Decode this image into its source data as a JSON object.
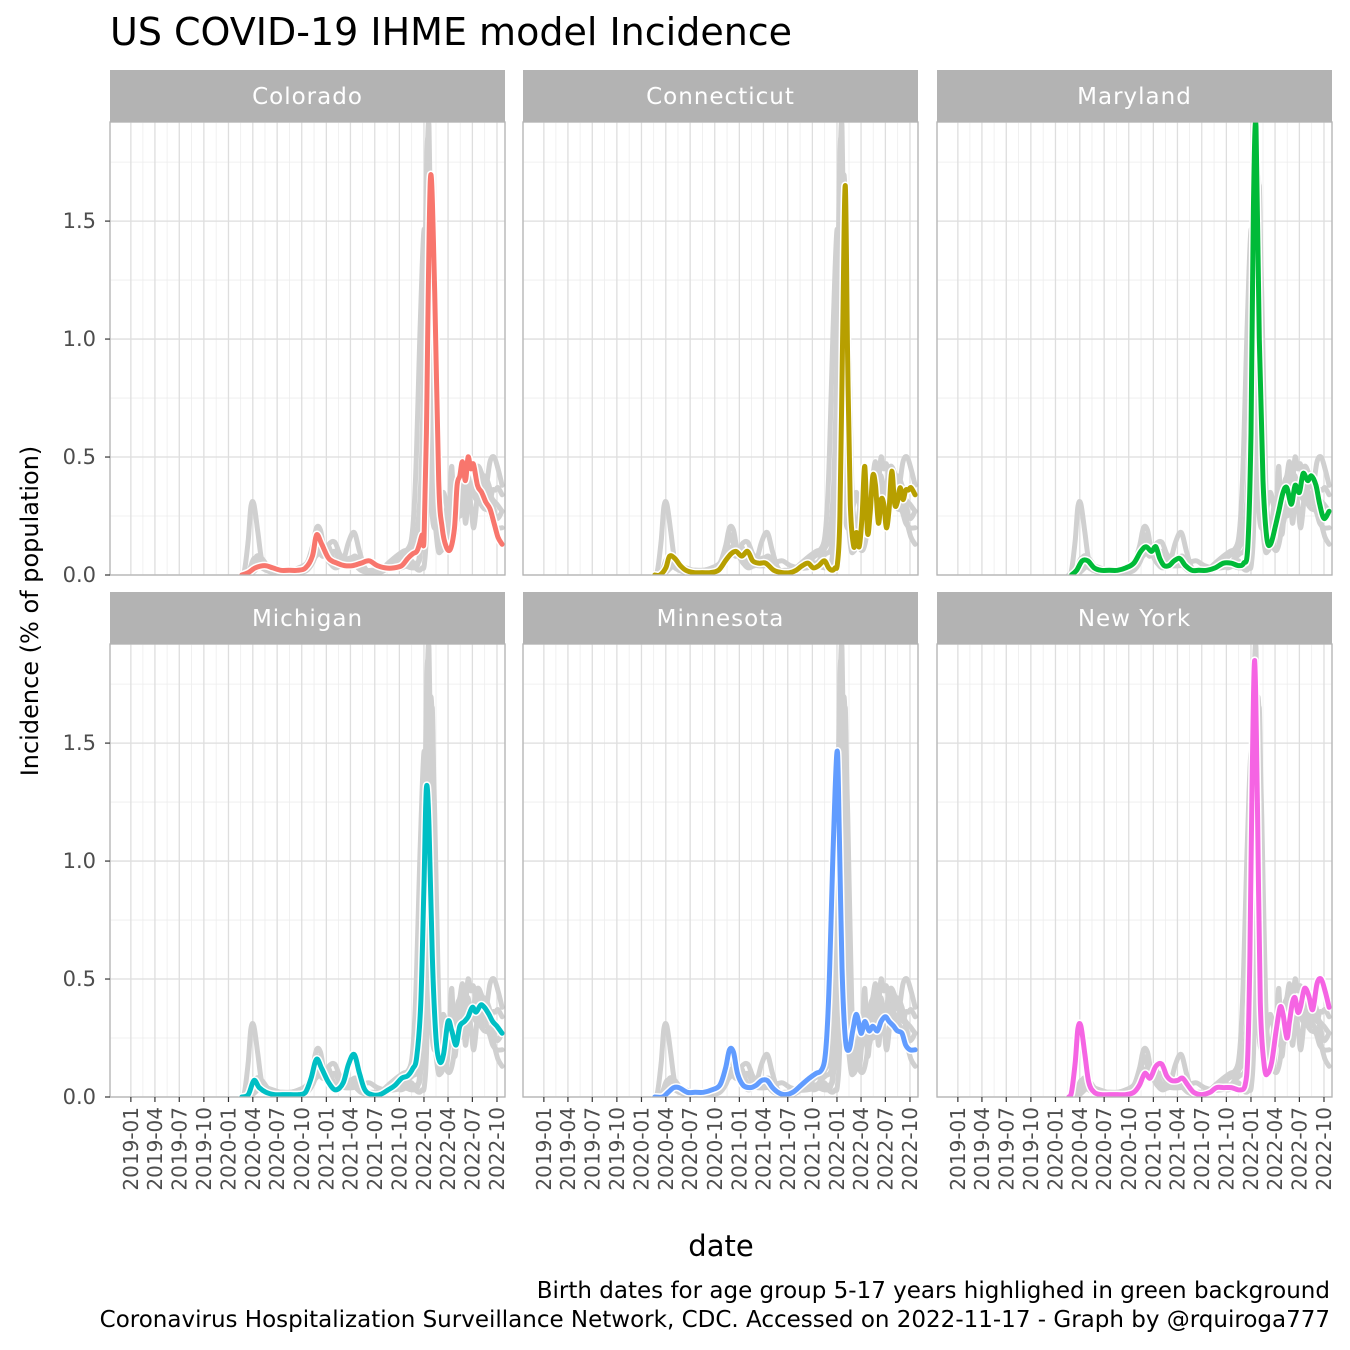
{
  "chart_data": {
    "type": "line",
    "title": "US COVID-19 IHME model Incidence",
    "xlabel": "date",
    "ylabel": "Incidence (% of population)",
    "caption_lines": [
      "Birth dates for age group 5-17 years highlighed in green background",
      "Coronavirus Hospitalization Surveillance Network, CDC. Accessed on 2022-11-17 - Graph by @rquiroga777"
    ],
    "x_tick_labels": [
      "2019-01",
      "2019-04",
      "2019-07",
      "2019-10",
      "2020-01",
      "2020-04",
      "2020-07",
      "2020-10",
      "2021-01",
      "2021-04",
      "2021-07",
      "2021-10",
      "2022-01",
      "2022-04",
      "2022-07",
      "2022-10"
    ],
    "x_range": [
      "2018-10-15",
      "2022-10-31"
    ],
    "y_ticks": [
      0.0,
      0.5,
      1.0,
      1.5
    ],
    "y_tick_labels": [
      "0.0",
      "0.5",
      "1.0",
      "1.5"
    ],
    "ylim": [
      0,
      1.92
    ],
    "grid": true,
    "facets": [
      {
        "name": "Colorado",
        "color": "#F8766D",
        "x": [
          "2020-02-20",
          "2020-03-15",
          "2020-04-10",
          "2020-05-15",
          "2020-06-15",
          "2020-07-15",
          "2020-08-15",
          "2020-09-15",
          "2020-10-15",
          "2020-11-10",
          "2020-11-25",
          "2020-12-15",
          "2021-01-10",
          "2021-02-10",
          "2021-03-10",
          "2021-04-10",
          "2021-05-10",
          "2021-06-10",
          "2021-07-10",
          "2021-08-10",
          "2021-09-10",
          "2021-10-10",
          "2021-11-01",
          "2021-11-20",
          "2021-12-05",
          "2021-12-15",
          "2021-12-25",
          "2022-01-01",
          "2022-01-10",
          "2022-01-25",
          "2022-02-10",
          "2022-02-25",
          "2022-03-10",
          "2022-03-25",
          "2022-04-10",
          "2022-04-25",
          "2022-05-05",
          "2022-05-15",
          "2022-05-25",
          "2022-06-05",
          "2022-06-15",
          "2022-06-25",
          "2022-07-05",
          "2022-07-20",
          "2022-08-05",
          "2022-08-20",
          "2022-09-05",
          "2022-09-20",
          "2022-10-05",
          "2022-10-20"
        ],
        "y": [
          0.0,
          0.01,
          0.03,
          0.04,
          0.03,
          0.02,
          0.02,
          0.02,
          0.03,
          0.08,
          0.17,
          0.13,
          0.07,
          0.05,
          0.04,
          0.04,
          0.05,
          0.06,
          0.04,
          0.03,
          0.03,
          0.04,
          0.07,
          0.09,
          0.1,
          0.13,
          0.17,
          0.15,
          0.6,
          1.68,
          1.2,
          0.4,
          0.2,
          0.12,
          0.11,
          0.2,
          0.38,
          0.42,
          0.48,
          0.4,
          0.5,
          0.45,
          0.47,
          0.38,
          0.35,
          0.31,
          0.28,
          0.22,
          0.16,
          0.13
        ]
      },
      {
        "name": "Connecticut",
        "color": "#B79F00",
        "x": [
          "2020-02-20",
          "2020-03-10",
          "2020-04-01",
          "2020-04-15",
          "2020-05-05",
          "2020-05-25",
          "2020-06-15",
          "2020-07-15",
          "2020-08-15",
          "2020-09-15",
          "2020-10-15",
          "2020-11-10",
          "2020-12-01",
          "2020-12-20",
          "2021-01-10",
          "2021-02-01",
          "2021-02-20",
          "2021-03-15",
          "2021-04-10",
          "2021-05-10",
          "2021-06-10",
          "2021-07-10",
          "2021-08-01",
          "2021-08-25",
          "2021-09-15",
          "2021-10-05",
          "2021-10-25",
          "2021-11-15",
          "2021-12-01",
          "2021-12-15",
          "2021-12-25",
          "2022-01-03",
          "2022-01-12",
          "2022-01-22",
          "2022-02-01",
          "2022-02-10",
          "2022-02-20",
          "2022-03-05",
          "2022-03-15",
          "2022-03-25",
          "2022-04-05",
          "2022-04-15",
          "2022-04-25",
          "2022-05-05",
          "2022-05-15",
          "2022-05-25",
          "2022-06-05",
          "2022-06-15",
          "2022-06-25",
          "2022-07-05",
          "2022-07-15",
          "2022-07-25",
          "2022-08-05",
          "2022-08-15",
          "2022-08-25",
          "2022-09-05",
          "2022-09-15",
          "2022-09-25",
          "2022-10-05",
          "2022-10-20"
        ],
        "y": [
          0.0,
          0.0,
          0.03,
          0.08,
          0.07,
          0.04,
          0.02,
          0.01,
          0.01,
          0.01,
          0.02,
          0.06,
          0.09,
          0.1,
          0.08,
          0.1,
          0.06,
          0.05,
          0.05,
          0.02,
          0.01,
          0.01,
          0.02,
          0.04,
          0.05,
          0.03,
          0.04,
          0.06,
          0.03,
          0.02,
          0.03,
          0.05,
          0.25,
          1.0,
          1.65,
          0.9,
          0.3,
          0.12,
          0.18,
          0.12,
          0.25,
          0.46,
          0.18,
          0.26,
          0.42,
          0.38,
          0.22,
          0.32,
          0.3,
          0.2,
          0.28,
          0.44,
          0.3,
          0.31,
          0.37,
          0.32,
          0.36,
          0.36,
          0.37,
          0.34
        ]
      },
      {
        "name": "Maryland",
        "color": "#00BA38",
        "x": [
          "2020-03-01",
          "2020-03-20",
          "2020-04-10",
          "2020-05-01",
          "2020-05-25",
          "2020-06-20",
          "2020-07-20",
          "2020-08-20",
          "2020-09-20",
          "2020-10-20",
          "2020-11-15",
          "2020-12-05",
          "2020-12-25",
          "2021-01-10",
          "2021-01-25",
          "2021-02-10",
          "2021-03-01",
          "2021-03-20",
          "2021-04-10",
          "2021-05-01",
          "2021-05-25",
          "2021-06-20",
          "2021-07-20",
          "2021-08-20",
          "2021-09-20",
          "2021-10-20",
          "2021-11-15",
          "2021-12-05",
          "2021-12-20",
          "2022-01-01",
          "2022-01-10",
          "2022-01-20",
          "2022-02-01",
          "2022-02-15",
          "2022-03-01",
          "2022-03-15",
          "2022-04-01",
          "2022-04-15",
          "2022-05-01",
          "2022-05-15",
          "2022-06-01",
          "2022-06-15",
          "2022-07-01",
          "2022-07-15",
          "2022-08-01",
          "2022-08-15",
          "2022-09-01",
          "2022-09-15",
          "2022-10-01",
          "2022-10-20"
        ],
        "y": [
          0.0,
          0.02,
          0.06,
          0.06,
          0.03,
          0.02,
          0.02,
          0.02,
          0.03,
          0.05,
          0.1,
          0.12,
          0.1,
          0.12,
          0.07,
          0.04,
          0.04,
          0.06,
          0.07,
          0.04,
          0.02,
          0.02,
          0.02,
          0.03,
          0.05,
          0.05,
          0.04,
          0.05,
          0.12,
          0.6,
          1.55,
          1.9,
          1.0,
          0.4,
          0.16,
          0.13,
          0.2,
          0.27,
          0.35,
          0.37,
          0.3,
          0.38,
          0.35,
          0.43,
          0.4,
          0.42,
          0.38,
          0.3,
          0.24,
          0.27
        ]
      },
      {
        "name": "Michigan",
        "color": "#00BFC4",
        "x": [
          "2020-02-20",
          "2020-03-15",
          "2020-04-05",
          "2020-04-25",
          "2020-05-20",
          "2020-06-20",
          "2020-07-20",
          "2020-08-20",
          "2020-09-20",
          "2020-10-15",
          "2020-11-05",
          "2020-11-25",
          "2020-12-15",
          "2021-01-10",
          "2021-02-05",
          "2021-03-05",
          "2021-03-25",
          "2021-04-15",
          "2021-05-05",
          "2021-05-25",
          "2021-06-20",
          "2021-07-20",
          "2021-08-20",
          "2021-09-15",
          "2021-10-10",
          "2021-11-01",
          "2021-11-20",
          "2021-12-05",
          "2021-12-20",
          "2022-01-01",
          "2022-01-10",
          "2022-01-20",
          "2022-02-01",
          "2022-02-15",
          "2022-03-01",
          "2022-03-15",
          "2022-04-01",
          "2022-04-15",
          "2022-05-01",
          "2022-05-15",
          "2022-06-01",
          "2022-06-15",
          "2022-07-01",
          "2022-07-15",
          "2022-08-01",
          "2022-08-15",
          "2022-09-01",
          "2022-09-15",
          "2022-10-01",
          "2022-10-20"
        ],
        "y": [
          0.0,
          0.01,
          0.07,
          0.04,
          0.02,
          0.01,
          0.01,
          0.01,
          0.01,
          0.02,
          0.08,
          0.16,
          0.12,
          0.06,
          0.03,
          0.06,
          0.14,
          0.18,
          0.1,
          0.03,
          0.01,
          0.01,
          0.03,
          0.05,
          0.08,
          0.09,
          0.12,
          0.17,
          0.4,
          0.9,
          1.31,
          1.15,
          0.6,
          0.25,
          0.15,
          0.18,
          0.32,
          0.28,
          0.22,
          0.3,
          0.32,
          0.34,
          0.38,
          0.36,
          0.39,
          0.38,
          0.35,
          0.32,
          0.3,
          0.27
        ]
      },
      {
        "name": "Minnesota",
        "color": "#619CFF",
        "x": [
          "2020-02-20",
          "2020-03-20",
          "2020-04-10",
          "2020-05-01",
          "2020-05-20",
          "2020-06-20",
          "2020-07-20",
          "2020-08-20",
          "2020-09-20",
          "2020-10-20",
          "2020-11-10",
          "2020-11-25",
          "2020-12-10",
          "2020-12-25",
          "2021-01-15",
          "2021-02-10",
          "2021-03-05",
          "2021-03-25",
          "2021-04-15",
          "2021-05-05",
          "2021-05-25",
          "2021-06-20",
          "2021-07-20",
          "2021-08-20",
          "2021-09-20",
          "2021-10-15",
          "2021-11-01",
          "2021-11-15",
          "2021-11-25",
          "2021-12-05",
          "2021-12-15",
          "2021-12-25",
          "2022-01-03",
          "2022-01-10",
          "2022-01-20",
          "2022-02-01",
          "2022-02-15",
          "2022-03-01",
          "2022-03-15",
          "2022-04-01",
          "2022-04-15",
          "2022-05-01",
          "2022-05-15",
          "2022-06-01",
          "2022-06-15",
          "2022-07-01",
          "2022-07-15",
          "2022-08-01",
          "2022-08-15",
          "2022-09-01",
          "2022-09-15",
          "2022-10-01",
          "2022-10-20"
        ],
        "y": [
          0.0,
          0.0,
          0.02,
          0.04,
          0.04,
          0.02,
          0.02,
          0.02,
          0.03,
          0.05,
          0.12,
          0.2,
          0.19,
          0.1,
          0.05,
          0.04,
          0.05,
          0.07,
          0.07,
          0.04,
          0.02,
          0.01,
          0.02,
          0.05,
          0.08,
          0.1,
          0.11,
          0.15,
          0.28,
          0.55,
          0.95,
          1.3,
          1.46,
          1.1,
          0.55,
          0.25,
          0.2,
          0.28,
          0.35,
          0.27,
          0.32,
          0.28,
          0.3,
          0.28,
          0.32,
          0.34,
          0.32,
          0.3,
          0.28,
          0.27,
          0.22,
          0.2,
          0.2
        ]
      },
      {
        "name": "New York",
        "color": "#F564E3",
        "x": [
          "2020-02-20",
          "2020-03-01",
          "2020-03-15",
          "2020-03-25",
          "2020-04-05",
          "2020-04-20",
          "2020-05-05",
          "2020-05-25",
          "2020-06-20",
          "2020-07-20",
          "2020-08-20",
          "2020-09-20",
          "2020-10-20",
          "2020-11-10",
          "2020-11-30",
          "2020-12-20",
          "2021-01-10",
          "2021-02-01",
          "2021-02-20",
          "2021-03-10",
          "2021-04-01",
          "2021-04-20",
          "2021-05-10",
          "2021-06-01",
          "2021-07-01",
          "2021-08-01",
          "2021-08-25",
          "2021-09-20",
          "2021-10-20",
          "2021-11-20",
          "2021-12-10",
          "2021-12-20",
          "2021-12-28",
          "2022-01-05",
          "2022-01-15",
          "2022-01-25",
          "2022-02-05",
          "2022-02-20",
          "2022-03-05",
          "2022-03-20",
          "2022-04-05",
          "2022-04-20",
          "2022-05-01",
          "2022-05-15",
          "2022-05-25",
          "2022-06-05",
          "2022-06-15",
          "2022-06-25",
          "2022-07-05",
          "2022-07-20",
          "2022-08-05",
          "2022-08-20",
          "2022-09-05",
          "2022-09-20",
          "2022-10-05",
          "2022-10-20"
        ],
        "y": [
          0.0,
          0.02,
          0.15,
          0.29,
          0.3,
          0.18,
          0.06,
          0.02,
          0.01,
          0.01,
          0.01,
          0.01,
          0.02,
          0.05,
          0.1,
          0.08,
          0.13,
          0.14,
          0.09,
          0.07,
          0.07,
          0.08,
          0.05,
          0.02,
          0.01,
          0.02,
          0.04,
          0.04,
          0.04,
          0.03,
          0.05,
          0.18,
          0.6,
          1.3,
          1.85,
          1.25,
          0.4,
          0.13,
          0.1,
          0.15,
          0.28,
          0.38,
          0.35,
          0.25,
          0.32,
          0.4,
          0.42,
          0.36,
          0.38,
          0.46,
          0.43,
          0.37,
          0.48,
          0.5,
          0.45,
          0.38
        ]
      }
    ]
  }
}
